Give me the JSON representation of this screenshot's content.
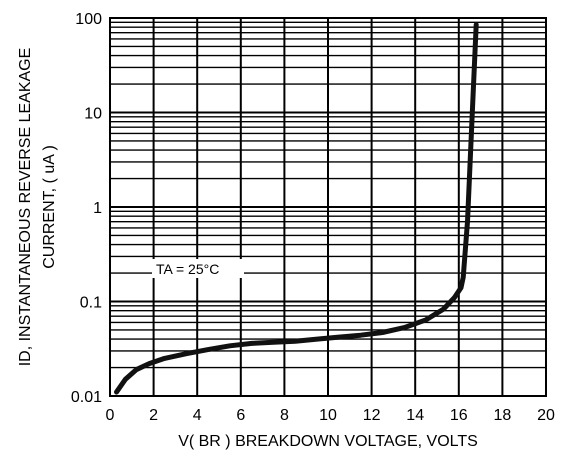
{
  "chart_data": {
    "type": "line",
    "ylabel_line1": "ID, INSTANTANEOUS REVERSE LEAKAGE",
    "ylabel_line2": "CURRENT, ( uA )",
    "xlabel": "V( BR ) BREAKDOWN VOLTAGE, VOLTS",
    "annotation": "TA = 25°C",
    "xlim": [
      0,
      20
    ],
    "ylim": [
      0.01,
      100
    ],
    "yscale": "log",
    "grid": true,
    "x_ticks": [
      "0",
      "2",
      "4",
      "6",
      "8",
      "10",
      "12",
      "14",
      "16",
      "18",
      "20"
    ],
    "y_ticks": [
      "0.01",
      "0.1",
      "1",
      "10",
      "100"
    ],
    "series": [
      {
        "x": [
          0.3,
          0.7,
          1.2,
          1.8,
          2.5,
          3.5,
          4.5,
          5.5,
          6.5,
          7.5,
          8.5,
          9.5,
          10.5,
          11.5,
          12.5,
          13.5,
          14.5,
          15.3,
          15.8,
          16.1,
          16.2,
          16.4,
          16.6,
          16.8
        ],
        "y": [
          0.011,
          0.015,
          0.019,
          0.022,
          0.025,
          0.028,
          0.031,
          0.034,
          0.036,
          0.037,
          0.038,
          0.04,
          0.042,
          0.044,
          0.047,
          0.053,
          0.064,
          0.083,
          0.11,
          0.14,
          0.18,
          0.7,
          8,
          85
        ],
        "color": "#111111"
      }
    ]
  }
}
